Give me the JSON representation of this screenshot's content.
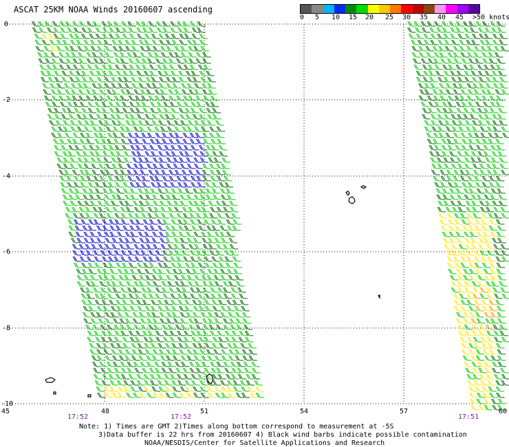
{
  "title": "ASCAT 25KM NOAA Winds 20160607 ascending",
  "colorbar": {
    "colors": [
      "#555555",
      "#888888",
      "#00b4ff",
      "#0028ff",
      "#008c00",
      "#00dc00",
      "#ffff00",
      "#ffc800",
      "#ff7800",
      "#ff0000",
      "#c00000",
      "#8c4614",
      "#ff96ff",
      "#ff00ff",
      "#a000ff",
      "#5a00a0"
    ],
    "labels": [
      "0",
      "5",
      "10",
      "15",
      "20",
      "25",
      "30",
      "35",
      "40",
      "45",
      ">50 knots"
    ]
  },
  "axes": {
    "x_ticks": [
      "45",
      "48",
      "51",
      "54",
      "57",
      "60"
    ],
    "y_ticks": [
      "0",
      "-2",
      "-4",
      "-6",
      "-8",
      "-10"
    ]
  },
  "times": [
    "17:52",
    "17:52",
    "17:51"
  ],
  "notes": [
    "Note: 1) Times are GMT 2)Times along bottom correspond to measurement at -5S",
    "3)Data buffer is 22 hrs from 20160607 4) Black wind barbs indicate possible contamination",
    "NOAA/NESDIS/Center for Satellite Applications and Research"
  ],
  "wind_colors": {
    "green": "#00c800",
    "dark_green": "#006400",
    "blue": "#0000c8",
    "yellow": "#ffe600",
    "orange": "#ff9600",
    "black": "#000000"
  }
}
